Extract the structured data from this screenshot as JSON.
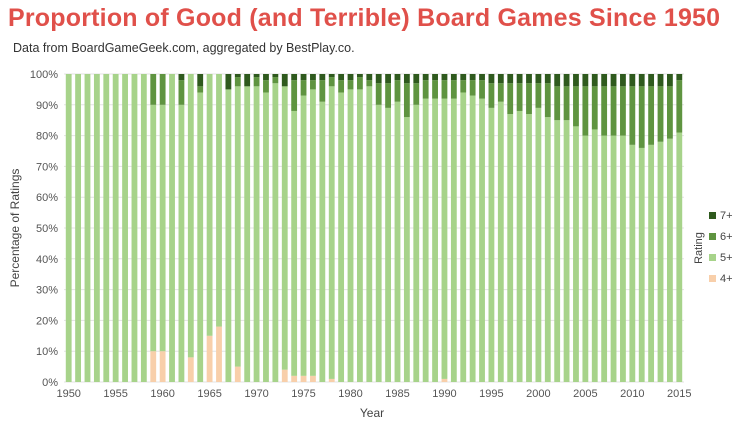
{
  "header": {
    "title": "Proportion of Good (and Terrible) Board Games Since 1950",
    "subtitle": "Data from BoardGameGeek.com, aggregated by BestPlay.co."
  },
  "chart_data": {
    "type": "bar",
    "stacked": true,
    "title": "Proportion of Good (and Terrible) Board Games Since 1950",
    "subtitle": "Data from BoardGameGeek.com, aggregated by BestPlay.co.",
    "xlabel": "Year",
    "ylabel": "Percentage of Ratings",
    "ylim": [
      0,
      100
    ],
    "grid": true,
    "legend_position": "right",
    "legend_title": "Rating",
    "x_ticks": [
      "1950",
      "1955",
      "1960",
      "1965",
      "1970",
      "1975",
      "1980",
      "1985",
      "1990",
      "1995",
      "2000",
      "2005",
      "2010",
      "2015"
    ],
    "y_ticks": [
      "0%",
      "10%",
      "20%",
      "30%",
      "40%",
      "50%",
      "60%",
      "70%",
      "80%",
      "90%",
      "100%"
    ],
    "colors": {
      "7+": "#2f5a1e",
      "6+": "#5f9440",
      "5+": "#a7d38a",
      "4+": "#f8cfaa"
    },
    "legend": [
      "7+",
      "6+",
      "5+",
      "4+"
    ],
    "categories": [
      1950,
      1951,
      1952,
      1953,
      1954,
      1955,
      1956,
      1957,
      1958,
      1959,
      1960,
      1961,
      1962,
      1963,
      1964,
      1965,
      1966,
      1967,
      1968,
      1969,
      1970,
      1971,
      1972,
      1973,
      1974,
      1975,
      1976,
      1977,
      1978,
      1979,
      1980,
      1981,
      1982,
      1983,
      1984,
      1985,
      1986,
      1987,
      1988,
      1989,
      1990,
      1991,
      1992,
      1993,
      1994,
      1995,
      1996,
      1997,
      1998,
      1999,
      2000,
      2001,
      2002,
      2003,
      2004,
      2005,
      2006,
      2007,
      2008,
      2009,
      2010,
      2011,
      2012,
      2013,
      2014,
      2015
    ],
    "series": [
      {
        "name": "4+",
        "values": [
          0,
          0,
          0,
          0,
          0,
          0,
          0,
          0,
          0,
          10,
          10,
          0,
          0,
          8,
          0,
          15,
          18,
          0,
          5,
          0,
          0,
          0,
          0,
          4,
          2,
          2,
          2,
          0,
          1,
          0,
          0,
          0,
          0,
          0,
          0,
          0,
          0,
          0,
          0,
          0,
          1,
          0,
          0,
          0,
          0,
          0,
          0,
          0,
          0,
          0,
          0,
          0,
          0,
          0,
          0,
          0,
          0,
          0,
          0,
          0,
          0,
          0,
          0,
          0,
          0,
          0
        ]
      },
      {
        "name": "5+",
        "values": [
          100,
          100,
          100,
          100,
          100,
          100,
          100,
          100,
          100,
          80,
          80,
          100,
          90,
          92,
          94,
          85,
          82,
          95,
          91,
          96,
          96,
          94,
          97,
          92,
          86,
          91,
          93,
          91,
          95,
          94,
          95,
          95,
          96,
          90,
          89,
          91,
          86,
          90,
          92,
          92,
          91,
          92,
          94,
          93,
          92,
          89,
          91,
          87,
          88,
          87,
          89,
          86,
          85,
          85,
          83,
          80,
          82,
          80,
          80,
          80,
          77,
          76,
          77,
          78,
          79,
          81
        ]
      },
      {
        "name": "6+",
        "values": [
          0,
          0,
          0,
          0,
          0,
          0,
          0,
          0,
          0,
          10,
          10,
          0,
          8,
          0,
          2,
          0,
          0,
          0,
          3,
          0,
          3,
          4,
          2,
          0,
          10,
          5,
          3,
          7,
          3,
          4,
          3,
          4,
          2,
          7,
          8,
          7,
          11,
          7,
          6,
          6,
          6,
          6,
          4,
          5,
          6,
          8,
          6,
          10,
          9,
          10,
          8,
          11,
          11,
          11,
          13,
          16,
          14,
          16,
          16,
          16,
          19,
          20,
          19,
          18,
          17,
          17
        ]
      },
      {
        "name": "7+",
        "values": [
          0,
          0,
          0,
          0,
          0,
          0,
          0,
          0,
          0,
          0,
          0,
          0,
          2,
          0,
          4,
          0,
          0,
          5,
          1,
          4,
          1,
          2,
          1,
          4,
          2,
          2,
          2,
          2,
          1,
          2,
          2,
          1,
          2,
          3,
          3,
          2,
          3,
          3,
          2,
          2,
          2,
          2,
          2,
          2,
          2,
          3,
          3,
          3,
          3,
          3,
          3,
          3,
          4,
          4,
          4,
          4,
          4,
          4,
          4,
          4,
          4,
          4,
          4,
          4,
          4,
          2
        ]
      }
    ]
  }
}
